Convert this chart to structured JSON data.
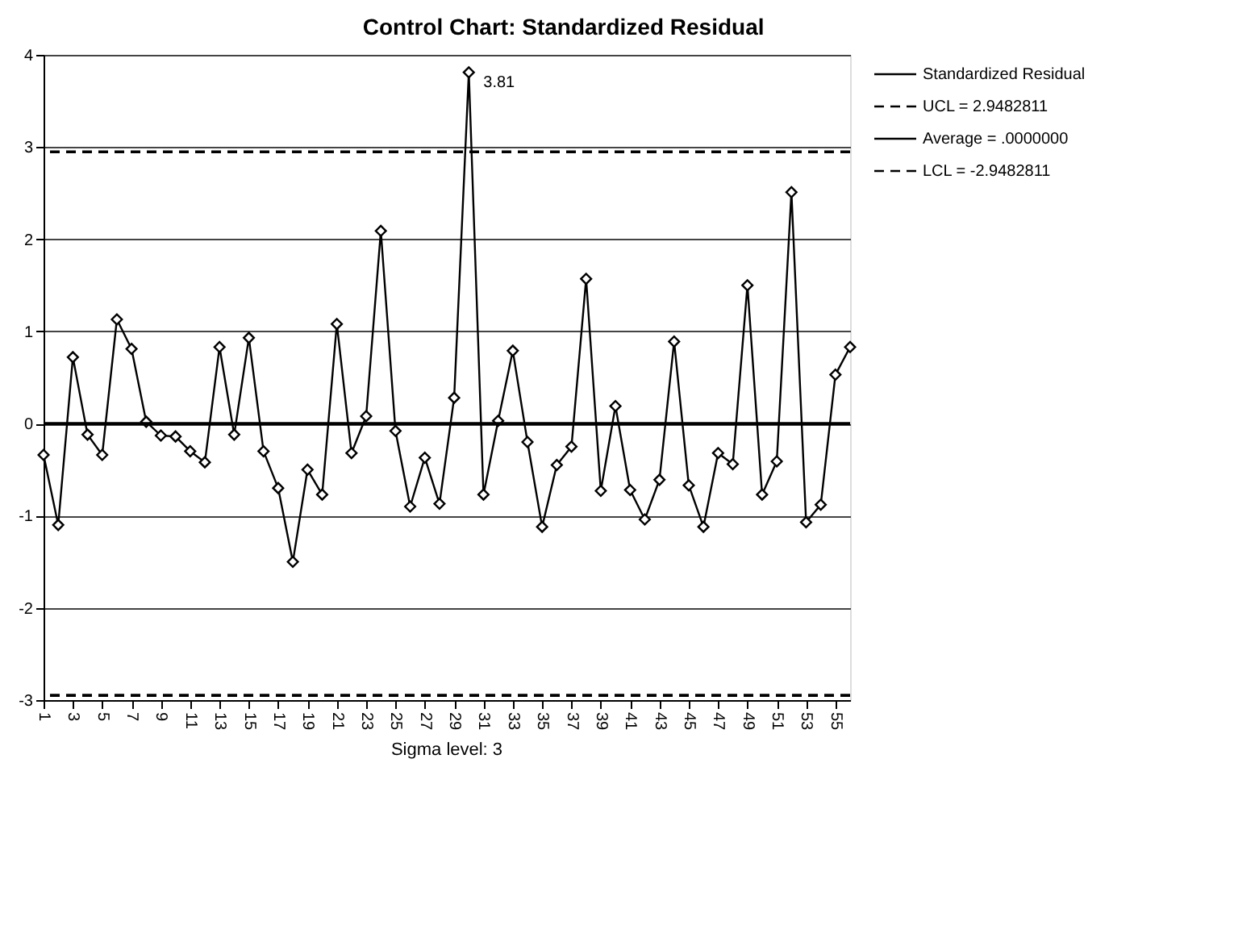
{
  "chart_data": {
    "type": "line",
    "title": "Control Chart: Standardized Residual",
    "x": [
      1,
      2,
      3,
      4,
      5,
      6,
      7,
      8,
      9,
      10,
      11,
      12,
      13,
      14,
      15,
      16,
      17,
      18,
      19,
      20,
      21,
      22,
      23,
      24,
      25,
      26,
      27,
      28,
      29,
      30,
      31,
      32,
      33,
      34,
      35,
      36,
      37,
      38,
      39,
      40,
      41,
      42,
      43,
      44,
      45,
      46,
      47,
      48,
      49,
      50,
      51,
      52,
      53,
      54,
      55,
      56
    ],
    "series": [
      {
        "name": "Standardized Residual",
        "color": "#000000",
        "values": [
          -0.34,
          -1.1,
          0.72,
          -0.12,
          -0.34,
          1.13,
          0.81,
          0.02,
          -0.13,
          -0.14,
          -0.3,
          -0.42,
          0.83,
          -0.12,
          0.93,
          -0.3,
          -0.7,
          -1.5,
          -0.5,
          -0.77,
          1.08,
          -0.32,
          0.08,
          2.09,
          -0.08,
          -0.9,
          -0.37,
          -0.87,
          0.28,
          3.81,
          -0.77,
          0.03,
          0.79,
          -0.2,
          -1.12,
          -0.45,
          -0.25,
          1.57,
          -0.73,
          0.19,
          -0.72,
          -1.04,
          -0.61,
          0.89,
          -0.67,
          -1.12,
          -0.32,
          -0.44,
          1.5,
          -0.77,
          -0.41,
          2.51,
          -1.07,
          -0.88,
          0.53,
          0.83
        ]
      }
    ],
    "xlim": [
      1,
      56
    ],
    "xticks": [
      1,
      3,
      5,
      7,
      9,
      11,
      13,
      15,
      17,
      19,
      21,
      23,
      25,
      27,
      29,
      31,
      33,
      35,
      37,
      39,
      41,
      43,
      45,
      47,
      49,
      51,
      53,
      55
    ],
    "ylim": [
      -3,
      4
    ],
    "yticks": [
      -3,
      -2,
      -1,
      0,
      1,
      2,
      3,
      4
    ],
    "grid": "y",
    "marker": "diamond",
    "line_style": "solid",
    "legend": "top right",
    "ref_lines": [
      {
        "axis": "y",
        "value": 2.9482811,
        "label": "UCL = 2.9482811",
        "line_style": "dashed",
        "color": "#000000"
      },
      {
        "axis": "y",
        "value": 0,
        "label": "Average = .0000000",
        "line_style": "solid",
        "color": "#000000"
      },
      {
        "axis": "y",
        "value": -2.9482811,
        "label": "LCL = -2.9482811",
        "line_style": "dashed",
        "color": "#000000"
      }
    ],
    "annotations": [
      {
        "text": "3.81",
        "x": 30,
        "y": 3.81
      },
      "Sigma level: 3"
    ]
  }
}
